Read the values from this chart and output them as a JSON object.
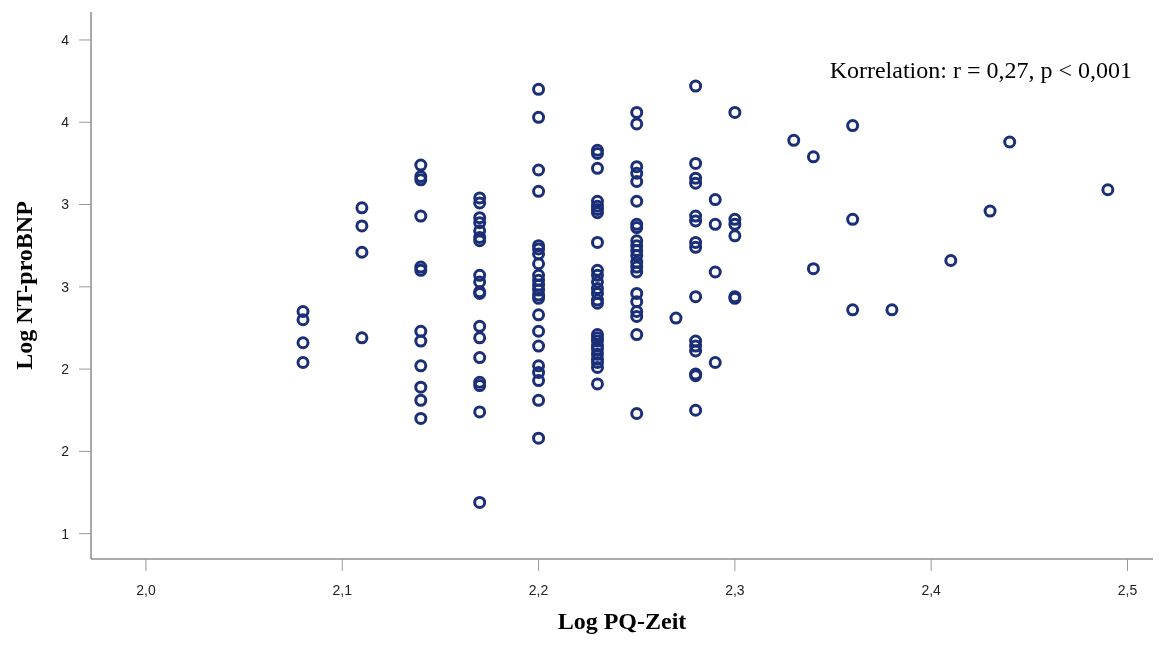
{
  "chart_data": {
    "type": "scatter",
    "xlabel": "Log PQ-Zeit",
    "ylabel": "Log NT-proBNP",
    "annotations": [
      "Korrelation: r = 0,27, p < 0,001"
    ],
    "xlim": [
      1.972,
      2.513
    ],
    "ylim": [
      0.846,
      4.17
    ],
    "xticks": [
      {
        "value": 2.0,
        "label": "2,0"
      },
      {
        "value": 2.1,
        "label": "2,1"
      },
      {
        "value": 2.2,
        "label": "2,2"
      },
      {
        "value": 2.3,
        "label": "2,3"
      },
      {
        "value": 2.4,
        "label": "2,4"
      },
      {
        "value": 2.5,
        "label": "2,5"
      }
    ],
    "yticks": [
      {
        "value": 1.0,
        "label": "1"
      },
      {
        "value": 1.5,
        "label": "2"
      },
      {
        "value": 2.0,
        "label": "2"
      },
      {
        "value": 2.5,
        "label": "3"
      },
      {
        "value": 3.0,
        "label": "3"
      },
      {
        "value": 3.5,
        "label": "4"
      },
      {
        "value": 4.0,
        "label": "4"
      }
    ],
    "grid": false,
    "marker": "circle",
    "series": [
      {
        "color": "#1b2f78",
        "x": [
          2.08,
          2.08,
          2.08,
          2.08,
          2.11,
          2.11,
          2.11,
          2.11,
          2.14,
          2.14,
          2.14,
          2.14,
          2.14,
          2.14,
          2.14,
          2.14,
          2.14,
          2.14,
          2.14,
          2.14,
          2.17,
          2.17,
          2.17,
          2.17,
          2.17,
          2.17,
          2.17,
          2.17,
          2.17,
          2.17,
          2.17,
          2.17,
          2.17,
          2.17,
          2.17,
          2.17,
          2.17,
          2.17,
          2.2,
          2.2,
          2.2,
          2.2,
          2.2,
          2.2,
          2.2,
          2.2,
          2.2,
          2.2,
          2.2,
          2.2,
          2.2,
          2.2,
          2.2,
          2.2,
          2.2,
          2.2,
          2.2,
          2.2,
          2.2,
          2.2,
          2.23,
          2.23,
          2.23,
          2.23,
          2.23,
          2.23,
          2.23,
          2.23,
          2.23,
          2.23,
          2.23,
          2.23,
          2.23,
          2.23,
          2.23,
          2.23,
          2.23,
          2.23,
          2.23,
          2.23,
          2.23,
          2.23,
          2.23,
          2.23,
          2.23,
          2.25,
          2.25,
          2.25,
          2.25,
          2.25,
          2.25,
          2.25,
          2.25,
          2.25,
          2.25,
          2.25,
          2.25,
          2.25,
          2.25,
          2.25,
          2.25,
          2.25,
          2.25,
          2.25,
          2.25,
          2.25,
          2.27,
          2.28,
          2.28,
          2.28,
          2.28,
          2.28,
          2.28,
          2.28,
          2.28,
          2.28,
          2.28,
          2.28,
          2.28,
          2.28,
          2.28,
          2.28,
          2.29,
          2.29,
          2.29,
          2.29,
          2.3,
          2.3,
          2.3,
          2.3,
          2.3,
          2.3,
          2.33,
          2.34,
          2.34,
          2.36,
          2.36,
          2.36,
          2.38,
          2.41,
          2.43,
          2.44,
          2.49
        ],
        "values": [
          2.35,
          2.3,
          2.16,
          2.04,
          2.98,
          2.87,
          2.71,
          2.19,
          3.24,
          3.17,
          3.15,
          2.93,
          2.62,
          2.6,
          2.23,
          2.17,
          2.02,
          1.89,
          1.81,
          1.7,
          3.04,
          3.01,
          2.92,
          2.89,
          2.84,
          2.8,
          2.78,
          2.57,
          2.53,
          2.47,
          2.46,
          2.26,
          2.19,
          2.07,
          1.92,
          1.9,
          1.74,
          1.19,
          3.7,
          3.53,
          3.21,
          3.08,
          2.75,
          2.73,
          2.7,
          2.64,
          2.57,
          2.54,
          2.51,
          2.48,
          2.45,
          2.43,
          2.33,
          2.23,
          2.14,
          2.02,
          1.98,
          1.93,
          1.81,
          1.58,
          3.33,
          3.31,
          3.22,
          3.02,
          2.99,
          2.97,
          2.95,
          2.77,
          2.6,
          2.57,
          2.53,
          2.49,
          2.46,
          2.42,
          2.4,
          2.21,
          2.19,
          2.17,
          2.14,
          2.12,
          2.09,
          2.06,
          2.04,
          2.01,
          1.91,
          3.56,
          3.49,
          3.23,
          3.19,
          3.14,
          3.02,
          2.88,
          2.86,
          2.78,
          2.75,
          2.72,
          2.69,
          2.65,
          2.62,
          2.59,
          2.46,
          2.41,
          2.35,
          2.32,
          2.21,
          1.73,
          2.31,
          3.72,
          3.25,
          3.16,
          3.13,
          2.93,
          2.9,
          2.77,
          2.74,
          2.44,
          2.17,
          2.14,
          2.11,
          1.97,
          1.96,
          1.75,
          3.03,
          2.88,
          2.59,
          2.04,
          3.56,
          2.91,
          2.88,
          2.81,
          2.44,
          2.43,
          3.39,
          3.29,
          2.61,
          3.48,
          2.91,
          2.36,
          2.36,
          2.66,
          2.96,
          3.38,
          3.09
        ]
      }
    ]
  }
}
